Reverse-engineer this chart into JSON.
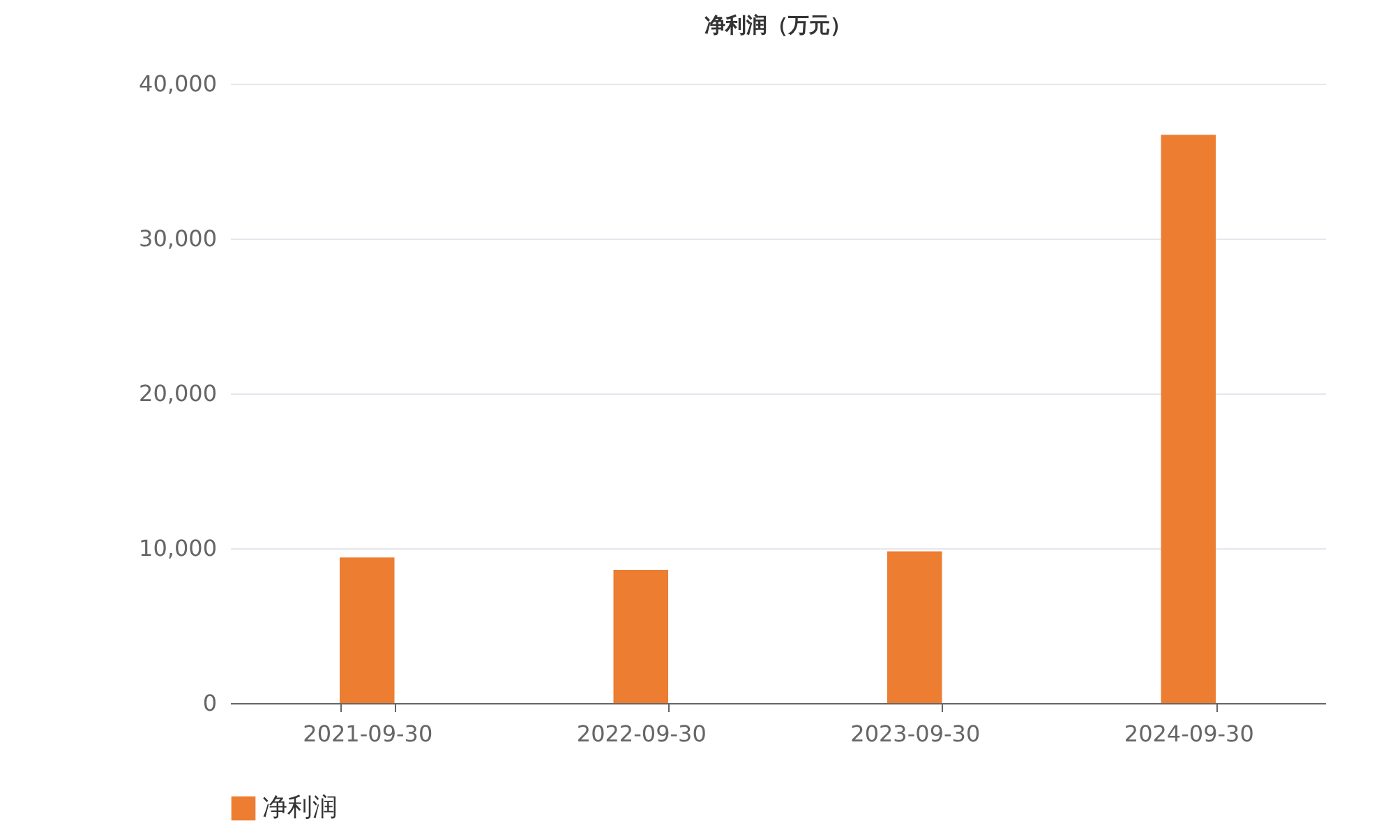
{
  "chart_data": {
    "type": "bar",
    "title": "净利润（万元）",
    "categories": [
      "2021-09-30",
      "2022-09-30",
      "2023-09-30",
      "2024-09-30"
    ],
    "series": [
      {
        "name": "净利润",
        "color": "#ed7d31",
        "values": [
          9400,
          8600,
          9800,
          36700
        ]
      }
    ],
    "ylim": [
      0,
      40000
    ],
    "yticks": [
      0,
      {
        "value": 10000,
        "label": "10,000"
      },
      {
        "value": 20000,
        "label": "20,000"
      },
      {
        "value": 30000,
        "label": "30,000"
      },
      {
        "value": 40000,
        "label": "40,000"
      }
    ],
    "grid": "y",
    "legend": "bottom"
  }
}
